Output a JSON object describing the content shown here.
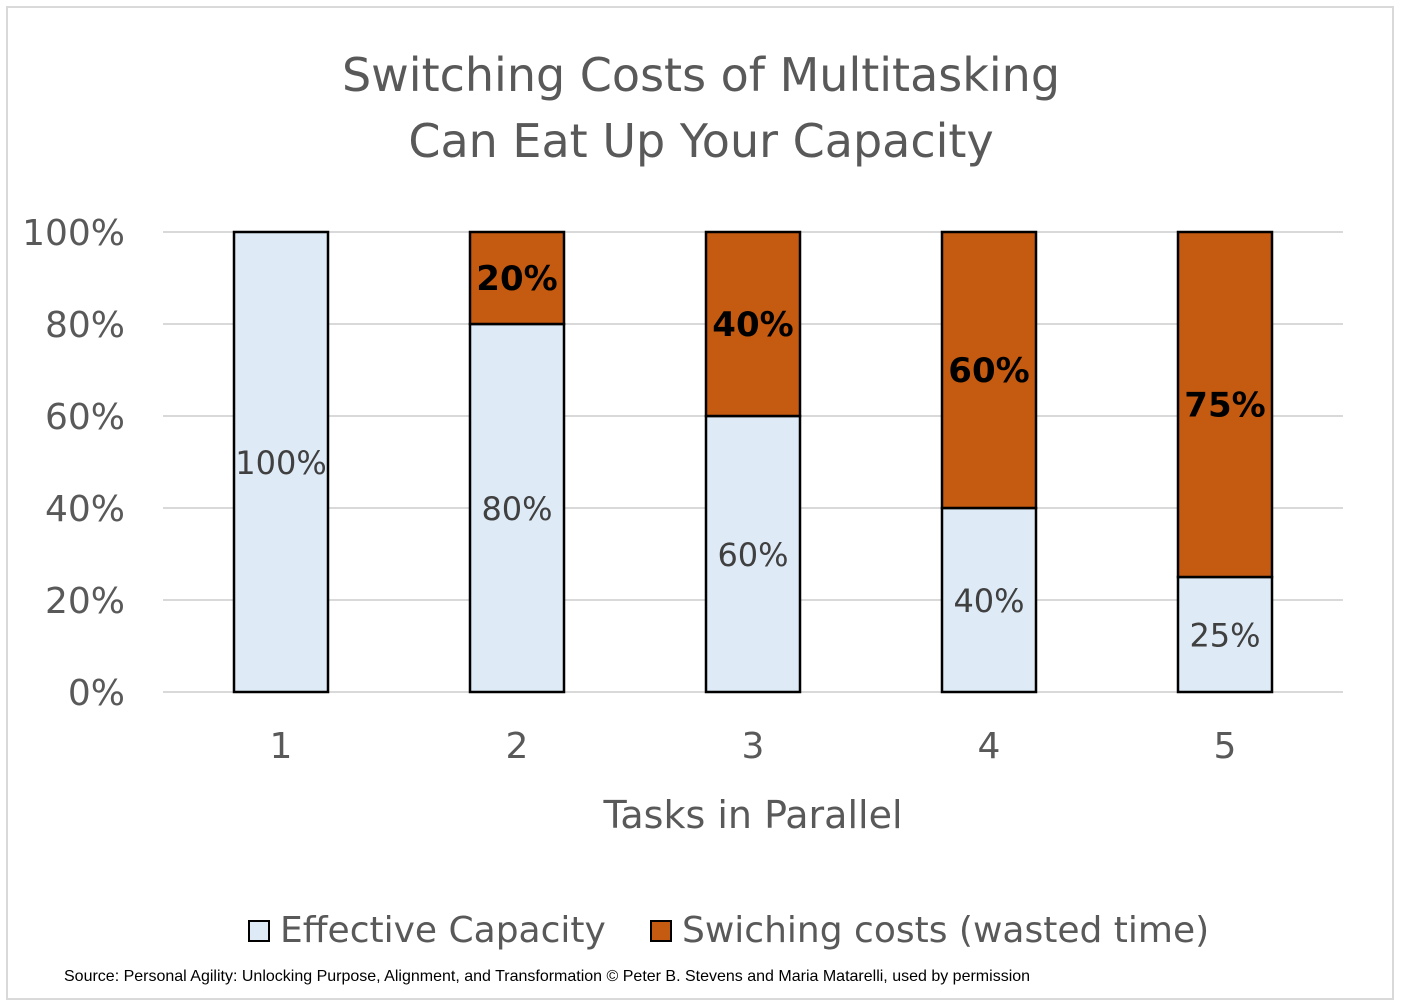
{
  "title_line1": "Switching Costs of Multitasking",
  "title_line2": "Can Eat Up Your Capacity",
  "source": "Source: Personal Agility: Unlocking Purpose, Alignment, and Transformation © Peter B. Stevens and Maria Matarelli, used by permission",
  "chart_data": {
    "type": "bar",
    "stacked": true,
    "categories": [
      "1",
      "2",
      "3",
      "4",
      "5"
    ],
    "series": [
      {
        "name": "Effective Capacity",
        "values": [
          100,
          80,
          60,
          40,
          25
        ],
        "color": "#deeaf6",
        "labels": [
          "100%",
          "80%",
          "60%",
          "40%",
          "25%"
        ]
      },
      {
        "name": "Swiching costs (wasted time)",
        "values": [
          0,
          20,
          40,
          60,
          75
        ],
        "color": "#c55a11",
        "labels": [
          "",
          "20%",
          "40%",
          "60%",
          "75%"
        ]
      }
    ],
    "xlabel": "Tasks in Parallel",
    "ylabel": "",
    "ylim": [
      0,
      100
    ],
    "yticks": [
      "0%",
      "20%",
      "40%",
      "60%",
      "80%",
      "100%"
    ],
    "grid": true,
    "legend_position": "bottom"
  }
}
